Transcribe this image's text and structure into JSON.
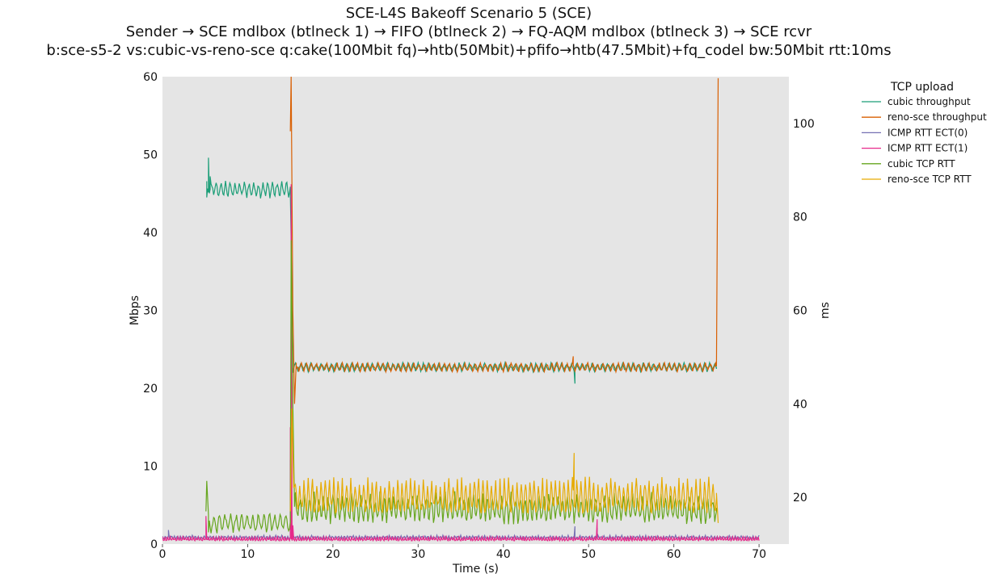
{
  "chart_data": {
    "type": "line",
    "title": "SCE-L4S Bakeoff Scenario 5 (SCE)",
    "subtitle": "Sender → SCE mdlbox (btlneck 1) → FIFO (btlneck 2) → FQ-AQM mdlbox (btlneck 3) → SCE rcvr",
    "subtitle2": "b:sce-s5-2 vs:cubic-vs-reno-sce q:cake(100Mbit fq)→htb(50Mbit)+pfifo→htb(47.5Mbit)+fq_codel bw:50Mbit rtt:10ms",
    "xlabel": "Time (s)",
    "ylabel": "Mbps",
    "y2label": "ms",
    "xlim": [
      0,
      73.5
    ],
    "ylim": [
      0,
      60
    ],
    "y2lim": [
      10,
      110
    ],
    "xticks": [
      "0",
      "10",
      "20",
      "30",
      "40",
      "50",
      "60",
      "70"
    ],
    "yticks": [
      "0",
      "10",
      "20",
      "30",
      "40",
      "50",
      "60"
    ],
    "y2ticks": [
      "20",
      "40",
      "60",
      "80",
      "100"
    ],
    "grid": false,
    "legend_title": "TCP upload",
    "legend_position": "right-outside",
    "background": "#e5e5e5",
    "series": [
      {
        "name": "cubic throughput",
        "axis": "left",
        "color": "#1b9e77",
        "segments": [
          {
            "x0": 5.2,
            "x1": 15.0,
            "base": 45.5,
            "amp": 1.3,
            "period": 0.55
          },
          {
            "x0": 15.6,
            "x1": 65.0,
            "base": 22.7,
            "amp": 0.6,
            "period": 0.6
          }
        ],
        "points": [
          [
            5.2,
            44.5
          ],
          [
            5.4,
            49.6
          ],
          [
            5.6,
            47.2
          ],
          [
            15.0,
            45.0
          ],
          [
            15.1,
            39.0
          ],
          [
            15.3,
            22.0
          ],
          [
            15.5,
            23.0
          ],
          [
            48.4,
            20.6
          ],
          [
            65.0,
            22.5
          ]
        ]
      },
      {
        "name": "reno-sce throughput",
        "axis": "left",
        "color": "#d95f02",
        "segments": [
          {
            "x0": 15.7,
            "x1": 65.0,
            "base": 22.7,
            "amp": 0.6,
            "period": 0.6
          }
        ],
        "points": [
          [
            15.0,
            53.0
          ],
          [
            15.1,
            60.0
          ],
          [
            15.3,
            30.0
          ],
          [
            15.5,
            18.0
          ],
          [
            15.7,
            22.5
          ],
          [
            48.2,
            24.1
          ],
          [
            65.0,
            22.8
          ],
          [
            65.2,
            59.8
          ]
        ]
      },
      {
        "name": "ICMP RTT ECT(0)",
        "axis": "right",
        "color": "#7570b3",
        "segments": [
          {
            "x0": 0.0,
            "x1": 70.0,
            "base": 11.4,
            "amp": 0.5,
            "period": 0.35
          }
        ],
        "points": [
          [
            0.7,
            13.0
          ],
          [
            15.0,
            28.0
          ],
          [
            48.4,
            13.8
          ],
          [
            51.0,
            13.5
          ]
        ]
      },
      {
        "name": "ICMP RTT ECT(1)",
        "axis": "right",
        "color": "#e7298a",
        "segments": [
          {
            "x0": 0.0,
            "x1": 70.0,
            "base": 11.0,
            "amp": 0.6,
            "period": 0.3
          }
        ],
        "points": [
          [
            5.1,
            16.0
          ],
          [
            15.0,
            35.0
          ],
          [
            15.1,
            87.0
          ],
          [
            15.3,
            14.0
          ],
          [
            51.0,
            15.3
          ]
        ]
      },
      {
        "name": "cubic TCP RTT",
        "axis": "right",
        "color": "#66a61e",
        "segments": [
          {
            "x0": 5.4,
            "x1": 15.0,
            "base": 14.5,
            "amp": 2.6,
            "period": 0.65
          },
          {
            "x0": 15.6,
            "x1": 65.0,
            "base": 17.5,
            "amp": 3.8,
            "period": 0.55
          }
        ],
        "points": [
          [
            5.1,
            17.0
          ],
          [
            5.2,
            23.5
          ],
          [
            5.4,
            12.5
          ],
          [
            15.0,
            16.0
          ],
          [
            15.1,
            75.0
          ],
          [
            15.3,
            40.0
          ],
          [
            15.5,
            18.0
          ],
          [
            65.0,
            17.0
          ]
        ]
      },
      {
        "name": "reno-sce TCP RTT",
        "axis": "right",
        "color": "#e6ab02",
        "segments": [
          {
            "x0": 15.6,
            "x1": 65.0,
            "base": 19.8,
            "amp": 4.6,
            "period": 0.5
          }
        ],
        "points": [
          [
            15.0,
            17.0
          ],
          [
            15.2,
            39.0
          ],
          [
            15.4,
            22.0
          ],
          [
            48.3,
            29.5
          ],
          [
            65.0,
            20.0
          ],
          [
            65.2,
            14.5
          ]
        ]
      }
    ]
  }
}
